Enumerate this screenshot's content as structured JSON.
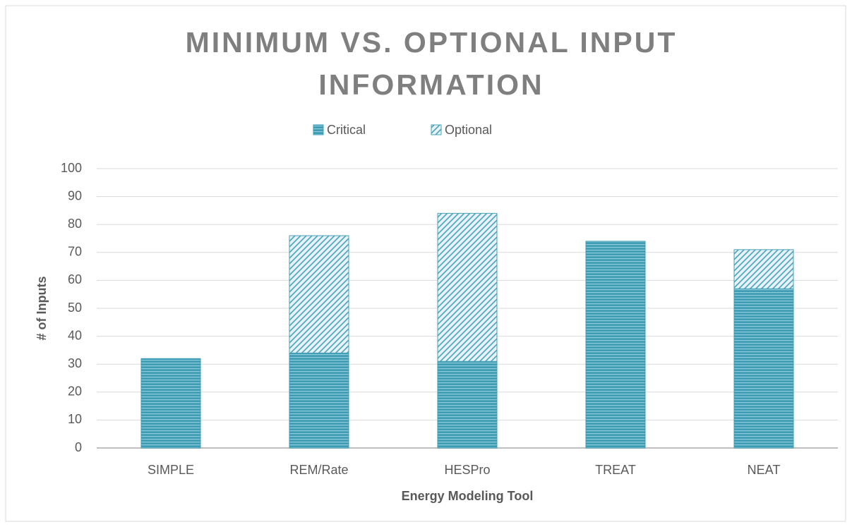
{
  "chart_data": {
    "type": "stacked_bar",
    "title": "MINIMUM VS. OPTIONAL INPUT INFORMATION",
    "x_label": "Energy Modeling Tool",
    "y_label": "# of Inputs",
    "categories": [
      "SIMPLE",
      "REM/Rate",
      "HESPro",
      "TREAT",
      "NEAT"
    ],
    "series": [
      {
        "name": "Critical",
        "color": "#3e9db5",
        "values": [
          32,
          34,
          31,
          74,
          57
        ]
      },
      {
        "name": "Optional",
        "color": "#4aa3b8",
        "values": [
          0,
          42,
          53,
          0,
          14
        ]
      }
    ],
    "ylim": [
      0,
      100
    ],
    "yticks": [
      0,
      10,
      20,
      30,
      40,
      50,
      60,
      70,
      80,
      90,
      100
    ],
    "grid": true,
    "legend": "top"
  }
}
